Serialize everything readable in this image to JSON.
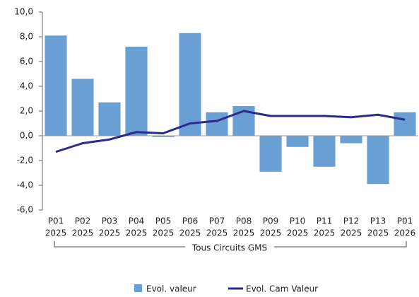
{
  "chart_data": {
    "type": "bar-line",
    "categories": [
      [
        "P01",
        "2025"
      ],
      [
        "P02",
        "2025"
      ],
      [
        "P03",
        "2025"
      ],
      [
        "P04",
        "2025"
      ],
      [
        "P05",
        "2025"
      ],
      [
        "P06",
        "2025"
      ],
      [
        "P07",
        "2025"
      ],
      [
        "P08",
        "2025"
      ],
      [
        "P09",
        "2025"
      ],
      [
        "P10",
        "2025"
      ],
      [
        "P11",
        "2025"
      ],
      [
        "P12",
        "2025"
      ],
      [
        "P13",
        "2025"
      ],
      [
        "P01",
        "2026"
      ]
    ],
    "group_label": "Tous Circuits GMS",
    "series": [
      {
        "name": "Evol. valeur",
        "type": "bar",
        "color": "#6a9fd4",
        "values": [
          8.1,
          4.6,
          2.7,
          7.2,
          -0.1,
          8.3,
          1.9,
          2.4,
          -2.9,
          -0.9,
          -2.5,
          -0.6,
          -3.9,
          1.9
        ]
      },
      {
        "name": "Evol. Cam Valeur",
        "type": "line",
        "color": "#2b2a8e",
        "values": [
          -1.3,
          -0.6,
          -0.3,
          0.3,
          0.2,
          1.0,
          1.2,
          2.0,
          1.6,
          1.6,
          1.6,
          1.5,
          1.7,
          1.3
        ]
      }
    ],
    "ylim": [
      -6,
      10
    ],
    "yticks": [
      {
        "value": -6,
        "label": "-6,0"
      },
      {
        "value": -4,
        "label": "-4,0"
      },
      {
        "value": -2,
        "label": "-2,0"
      },
      {
        "value": 0,
        "label": "0,0"
      },
      {
        "value": 2,
        "label": "2,0"
      },
      {
        "value": 4,
        "label": "4,0"
      },
      {
        "value": 6,
        "label": "6,0"
      },
      {
        "value": 8,
        "label": "8,0"
      },
      {
        "value": 10,
        "label": "10,0"
      }
    ],
    "legend": "bottom"
  }
}
